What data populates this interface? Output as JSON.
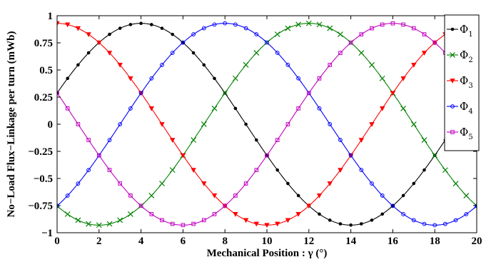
{
  "chart_data": {
    "type": "line",
    "title": "",
    "xlabel": "Mechanical Position : γ (°)",
    "ylabel": "No−Load Flux−Linkage per turn (mWb)",
    "xlim": [
      0,
      20
    ],
    "ylim": [
      -1,
      1
    ],
    "x_ticks": [
      0,
      2,
      4,
      6,
      8,
      10,
      12,
      14,
      16,
      18,
      20
    ],
    "x_tick_labels": [
      "0",
      "2",
      "4",
      "6",
      "8",
      "10",
      "12",
      "14",
      "16",
      "18",
      "20"
    ],
    "y_ticks": [
      1,
      0.75,
      0.5,
      0.25,
      0,
      -0.25,
      -0.5,
      -0.75,
      -1
    ],
    "y_tick_labels": [
      "1",
      "0.75",
      "0.5",
      "0.25",
      "0",
      "−0.25",
      "−0.5",
      "−0.75",
      "−1"
    ],
    "grid": false,
    "legend_position": "top-right",
    "x_samples": [
      0,
      1,
      2,
      3,
      4,
      5,
      6,
      7,
      8,
      9,
      10,
      11,
      12,
      13,
      14,
      15,
      16,
      17,
      18,
      19,
      20
    ],
    "series": [
      {
        "name": "Φ",
        "subscript": "1",
        "color": "#000000",
        "marker": "dot",
        "values": [
          0.29,
          0.54,
          0.76,
          0.88,
          0.93,
          0.88,
          0.76,
          0.54,
          0.29,
          0.0,
          -0.29,
          -0.54,
          -0.76,
          -0.88,
          -0.93,
          -0.88,
          -0.76,
          -0.54,
          -0.29,
          0.0,
          0.29
        ]
      },
      {
        "name": "Φ",
        "subscript": "2",
        "color": "#008000",
        "marker": "x",
        "values": [
          -0.76,
          -0.88,
          -0.93,
          -0.88,
          -0.76,
          -0.54,
          -0.29,
          0.0,
          0.29,
          0.54,
          0.76,
          0.88,
          0.93,
          0.88,
          0.76,
          0.54,
          0.29,
          0.0,
          -0.29,
          -0.54,
          -0.76
        ]
      },
      {
        "name": "Φ",
        "subscript": "3",
        "color": "#ff0000",
        "marker": "triangle-down",
        "values": [
          0.93,
          0.88,
          0.76,
          0.54,
          0.29,
          0.0,
          -0.29,
          -0.54,
          -0.76,
          -0.88,
          -0.93,
          -0.88,
          -0.76,
          -0.54,
          -0.29,
          0.0,
          0.29,
          0.54,
          0.76,
          0.88,
          0.93
        ]
      },
      {
        "name": "Φ",
        "subscript": "4",
        "color": "#0000ff",
        "marker": "circle",
        "values": [
          -0.76,
          -0.54,
          -0.29,
          0.0,
          0.29,
          0.54,
          0.76,
          0.88,
          0.93,
          0.88,
          0.76,
          0.54,
          0.29,
          0.0,
          -0.29,
          -0.54,
          -0.76,
          -0.88,
          -0.93,
          -0.88,
          -0.76
        ]
      },
      {
        "name": "Φ",
        "subscript": "5",
        "color": "#c000c0",
        "marker": "square",
        "values": [
          0.29,
          0.0,
          -0.29,
          -0.54,
          -0.76,
          -0.88,
          -0.93,
          -0.88,
          -0.76,
          -0.54,
          -0.29,
          0.0,
          0.29,
          0.54,
          0.76,
          0.88,
          0.93,
          0.88,
          0.76,
          0.54,
          0.29
        ]
      }
    ]
  }
}
